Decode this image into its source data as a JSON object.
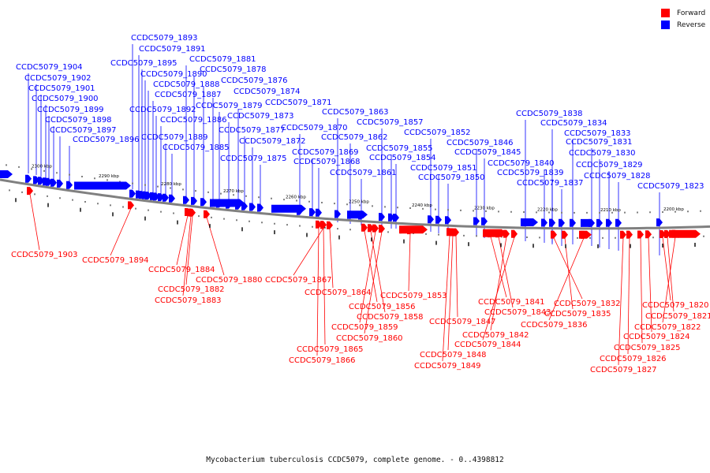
{
  "caption": "Mycobacterium tuberculosis CCDC5079, complete genome. - 0..4398812",
  "legend": [
    {
      "label": "Forward",
      "color": "#ff0000"
    },
    {
      "label": "Reverse",
      "color": "#0000ff"
    }
  ],
  "colors": {
    "forward": "#ff0000",
    "reverse": "#0000ff",
    "backbone": "#808080",
    "tick": "#000000"
  },
  "scale_labels": [
    {
      "text": "2300 kbp",
      "kbp": 2300
    },
    {
      "text": "2290 kbp",
      "kbp": 2290
    },
    {
      "text": "2280 kbp",
      "kbp": 2280
    },
    {
      "text": "2270 kbp",
      "kbp": 2270
    },
    {
      "text": "2260 kbp",
      "kbp": 2260
    },
    {
      "text": "2250 kbp",
      "kbp": 2250
    },
    {
      "text": "2240 kbp",
      "kbp": 2240
    },
    {
      "text": "2230 kbp",
      "kbp": 2230
    },
    {
      "text": "2220 kbp",
      "kbp": 2220
    },
    {
      "text": "2210 kbp",
      "kbp": 2210
    },
    {
      "text": "2200 kbp",
      "kbp": 2200
    }
  ],
  "reverse_labels": [
    "CCDC5079_1904",
    "CCDC5079_1902",
    "CCDC5079_1901",
    "CCDC5079_1900",
    "CCDC5079_1899",
    "CCDC5079_1898",
    "CCDC5079_1897",
    "CCDC5079_1896",
    "CCDC5079_1893",
    "CCDC5079_1891",
    "CCDC5079_1895",
    "CCDC5079_1890",
    "CCDC5079_1888",
    "CCDC5079_1887",
    "CCDC5079_1892",
    "CCDC5079_1886",
    "CCDC5079_1889",
    "CCDC5079_1885",
    "CCDC5079_1881",
    "CCDC5079_1878",
    "CCDC5079_1876",
    "CCDC5079_1874",
    "CCDC5079_1879",
    "CCDC5079_1873",
    "CCDC5079_1871",
    "CCDC5079_1877",
    "CCDC5079_1872",
    "CCDC5079_1875",
    "CCDC5079_1870",
    "CCDC5079_1869",
    "CCDC5079_1868",
    "CCDC5079_1863",
    "CCDC5079_1862",
    "CCDC5079_1861",
    "CCDC5079_1857",
    "CCDC5079_1855",
    "CCDC5079_1854",
    "CCDC5079_1852",
    "CCDC5079_1851",
    "CCDC5079_1850",
    "CCDC5079_1846",
    "CCDC5079_1845",
    "CCDC5079_1838",
    "CCDC5079_1834",
    "CCDC5079_1833",
    "CCDC5079_1840",
    "CCDC5079_1839",
    "CCDC5079_1837",
    "CCDC5079_1831",
    "CCDC5079_1830",
    "CCDC5079_1829",
    "CCDC5079_1828",
    "CCDC5079_1823"
  ],
  "forward_labels": [
    "CCDC5079_1903",
    "CCDC5079_1894",
    "CCDC5079_1884",
    "CCDC5079_1880",
    "CCDC5079_1882",
    "CCDC5079_1883",
    "CCDC5079_1867",
    "CCDC5079_1864",
    "CCDC5079_1856",
    "CCDC5079_1858",
    "CCDC5079_1859",
    "CCDC5079_1860",
    "CCDC5079_1865",
    "CCDC5079_1866",
    "CCDC5079_1853",
    "CCDC5079_1841",
    "CCDC5079_1843",
    "CCDC5079_1847",
    "CCDC5079_1842",
    "CCDC5079_1844",
    "CCDC5079_1848",
    "CCDC5079_1849",
    "CCDC5079_1832",
    "CCDC5079_1835",
    "CCDC5079_1836",
    "CCDC5079_1820",
    "CCDC5079_1821",
    "CCDC5079_1822",
    "CCDC5079_1824",
    "CCDC5079_1825",
    "CCDC5079_1826",
    "CCDC5079_1827"
  ]
}
